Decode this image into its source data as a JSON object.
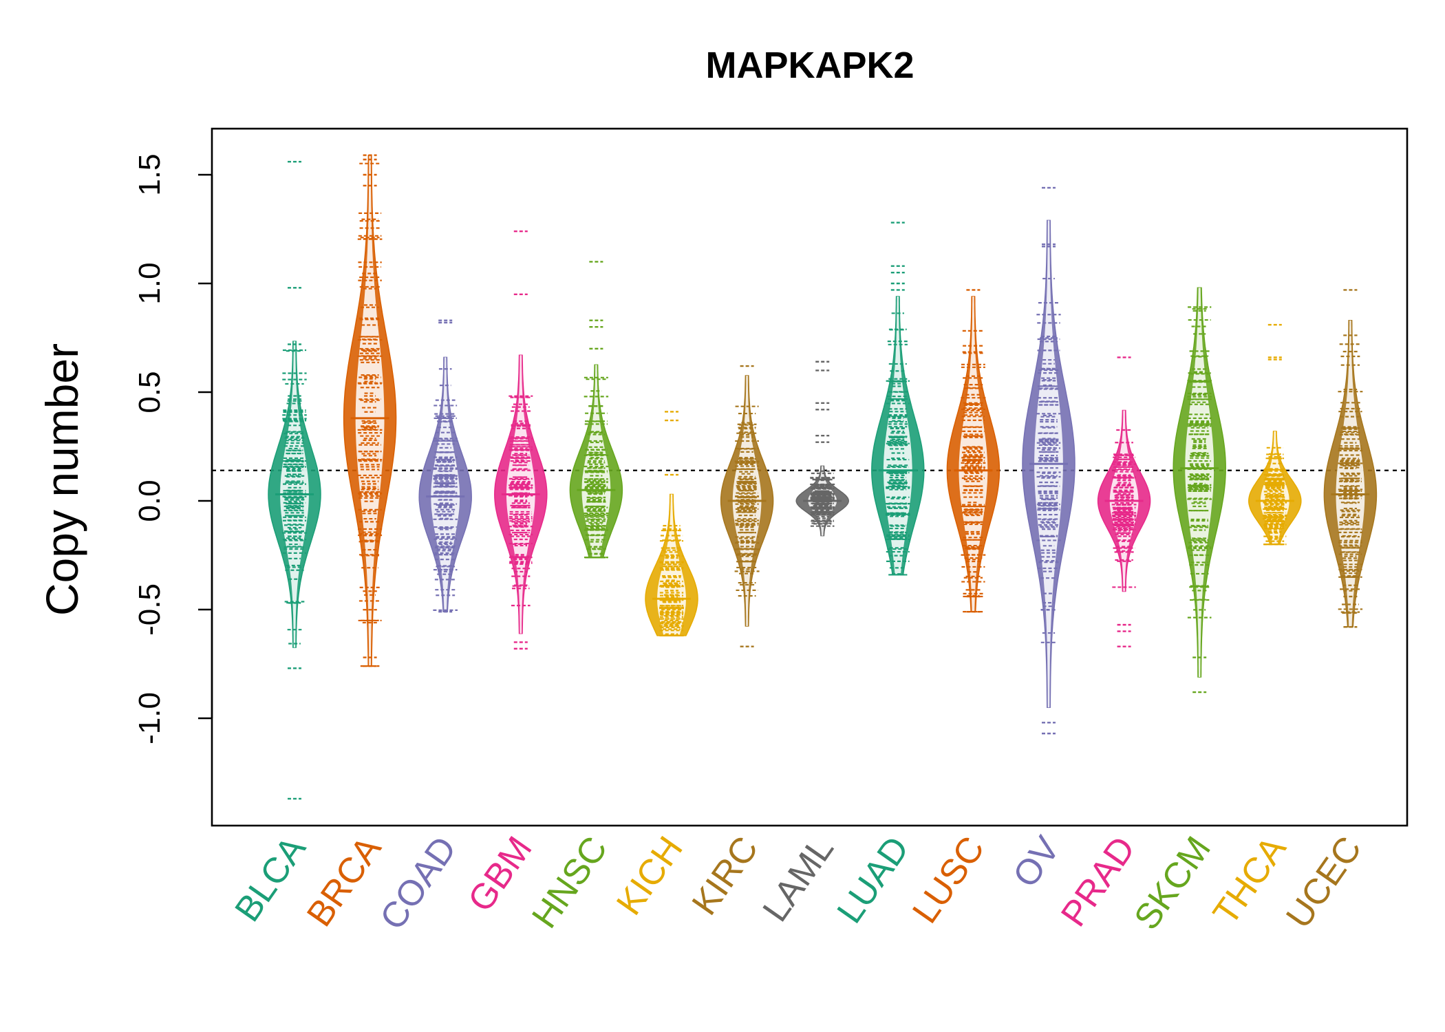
{
  "chart_data": {
    "type": "beanplot",
    "title": "MAPKAPK2",
    "ylabel": "Copy number",
    "xlabel": "",
    "ylim": [
      -1.5,
      1.7
    ],
    "yticks": [
      -1.0,
      -0.5,
      0.0,
      0.5,
      1.0,
      1.5
    ],
    "ytick_labels": [
      "-1.0",
      "-0.5",
      "0.0",
      "0.5",
      "1.0",
      "1.5"
    ],
    "reference_line": 0.14,
    "categories": [
      "BLCA",
      "BRCA",
      "COAD",
      "GBM",
      "HNSC",
      "KICH",
      "KIRC",
      "LAML",
      "LUAD",
      "LUSC",
      "OV",
      "PRAD",
      "SKCM",
      "THCA",
      "UCEC"
    ],
    "colors": [
      "#1B9E77",
      "#D95F02",
      "#7570B3",
      "#E7298A",
      "#66A61E",
      "#E6AB02",
      "#A6761D",
      "#666666",
      "#1B9E77",
      "#D95F02",
      "#7570B3",
      "#E7298A",
      "#66A61E",
      "#E6AB02",
      "#A6761D"
    ],
    "series": [
      {
        "name": "BLCA",
        "min": -1.37,
        "max": 1.56,
        "mean": 0.03,
        "spread": 0.22,
        "outliers": [
          1.56,
          0.98,
          0.72,
          -0.77,
          -1.37
        ]
      },
      {
        "name": "BRCA",
        "min": -0.76,
        "max": 1.59,
        "mean": 0.38,
        "spread": 0.38,
        "outliers": [
          1.59,
          1.57,
          1.5,
          1.45,
          -0.72,
          -0.76
        ]
      },
      {
        "name": "COAD",
        "min": -0.51,
        "max": 0.83,
        "mean": 0.02,
        "spread": 0.2,
        "outliers": [
          0.83,
          0.82,
          -0.51
        ]
      },
      {
        "name": "GBM",
        "min": -0.68,
        "max": 1.24,
        "mean": 0.03,
        "spread": 0.2,
        "outliers": [
          1.24,
          0.95,
          -0.65,
          -0.68
        ]
      },
      {
        "name": "HNSC",
        "min": -0.26,
        "max": 1.1,
        "mean": 0.05,
        "spread": 0.18,
        "outliers": [
          1.1,
          0.83,
          0.8,
          0.7
        ]
      },
      {
        "name": "KICH",
        "min": -0.62,
        "max": 0.41,
        "mean": -0.45,
        "spread": 0.15,
        "outliers": [
          0.41,
          0.37,
          0.12
        ]
      },
      {
        "name": "KIRC",
        "min": -0.67,
        "max": 0.62,
        "mean": 0.0,
        "spread": 0.18,
        "outliers": [
          0.62,
          -0.67
        ]
      },
      {
        "name": "LAML",
        "min": -0.16,
        "max": 0.64,
        "mean": 0.0,
        "spread": 0.05,
        "outliers": [
          0.64,
          0.6,
          0.45,
          0.42,
          0.3,
          0.27
        ]
      },
      {
        "name": "LUAD",
        "min": -0.34,
        "max": 1.28,
        "mean": 0.14,
        "spread": 0.25,
        "outliers": [
          1.28,
          1.08,
          1.05,
          1.0,
          0.97
        ]
      },
      {
        "name": "LUSC",
        "min": -0.51,
        "max": 0.97,
        "mean": 0.14,
        "spread": 0.25,
        "outliers": [
          0.97,
          -0.44,
          -0.51
        ]
      },
      {
        "name": "OV",
        "min": -1.07,
        "max": 1.44,
        "mean": 0.17,
        "spread": 0.35,
        "outliers": [
          1.44,
          1.18,
          1.17,
          -1.02,
          -1.07
        ]
      },
      {
        "name": "PRAD",
        "min": -0.67,
        "max": 0.66,
        "mean": 0.0,
        "spread": 0.13,
        "outliers": [
          0.66,
          -0.57,
          -0.6,
          -0.67
        ]
      },
      {
        "name": "SKCM",
        "min": -0.88,
        "max": 0.98,
        "mean": 0.15,
        "spread": 0.3,
        "outliers": [
          -0.72,
          -0.88
        ]
      },
      {
        "name": "THCA",
        "min": -0.2,
        "max": 0.81,
        "mean": 0.0,
        "spread": 0.1,
        "outliers": [
          0.81,
          0.66,
          0.65
        ]
      },
      {
        "name": "UCEC",
        "min": -0.58,
        "max": 0.97,
        "mean": 0.03,
        "spread": 0.25,
        "outliers": [
          0.97,
          -0.44,
          -0.58
        ]
      }
    ]
  }
}
